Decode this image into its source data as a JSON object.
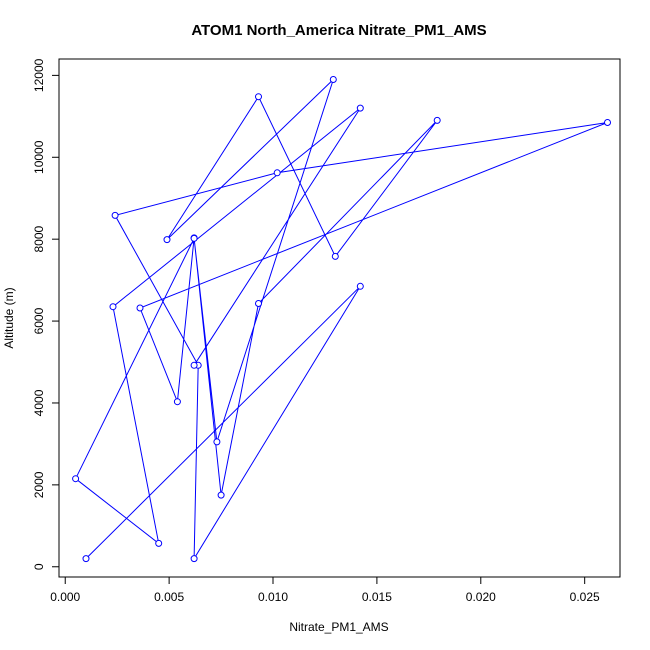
{
  "chart_data": {
    "type": "line",
    "title": "ATOM1 North_America Nitrate_PM1_AMS",
    "xlabel": "Nitrate_PM1_AMS",
    "ylabel": "Altitude (m)",
    "xlim": [
      -0.0003,
      0.0267
    ],
    "ylim": [
      -250,
      12400
    ],
    "x_ticks": [
      0.0,
      0.005,
      0.01,
      0.015,
      0.02,
      0.025
    ],
    "x_tick_labels": [
      "0.000",
      "0.005",
      "0.010",
      "0.015",
      "0.020",
      "0.025"
    ],
    "y_ticks": [
      0,
      2000,
      4000,
      6000,
      8000,
      10000,
      12000
    ],
    "y_tick_labels": [
      "0",
      "2000",
      "4000",
      "6000",
      "8000",
      "10000",
      "12000"
    ],
    "series": [
      {
        "color": "#0000ff",
        "points": [
          [
            0.001,
            200
          ],
          [
            0.0142,
            6850
          ],
          [
            0.0062,
            200
          ],
          [
            0.0064,
            4920
          ],
          [
            0.0024,
            8580
          ],
          [
            0.0102,
            9620
          ],
          [
            0.0261,
            10850
          ],
          [
            0.0036,
            6320
          ],
          [
            0.0054,
            4030
          ],
          [
            0.0062,
            8030
          ],
          [
            0.0075,
            1750
          ],
          [
            0.0093,
            6430
          ],
          [
            0.0179,
            10900
          ],
          [
            0.013,
            7580
          ],
          [
            0.0093,
            11480
          ],
          [
            0.0049,
            7990
          ],
          [
            0.0129,
            11900
          ],
          [
            0.0073,
            3050
          ],
          [
            0.0062,
            8020
          ],
          [
            0.0005,
            2150
          ],
          [
            0.0045,
            570
          ],
          [
            0.0023,
            6350
          ],
          [
            0.0142,
            11200
          ],
          [
            0.0062,
            4920
          ]
        ]
      }
    ]
  }
}
